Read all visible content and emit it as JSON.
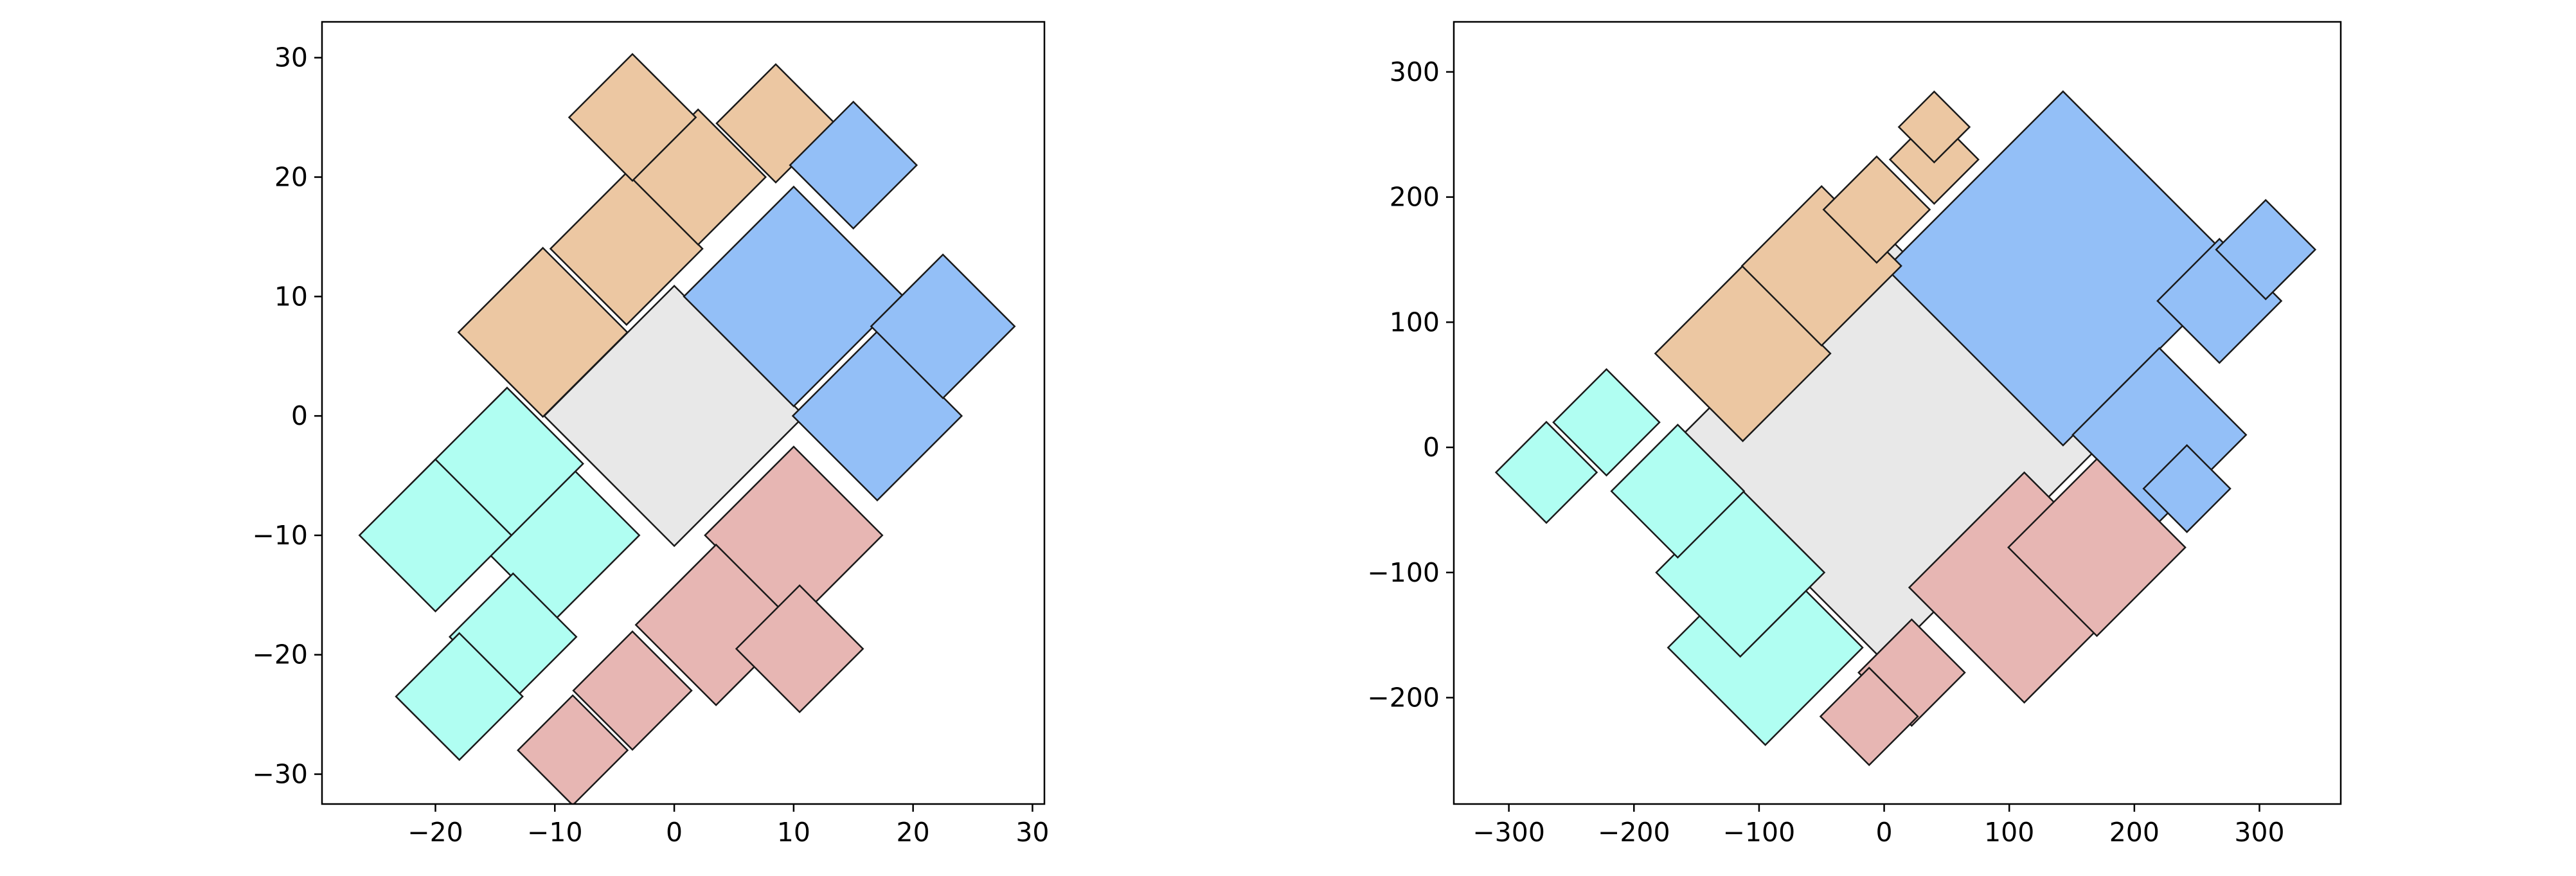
{
  "colors": {
    "center": "#e8e8e8",
    "top_left": "#ecc7a2",
    "top_right": "#93bff7",
    "bottom_right": "#e7b6b3",
    "bottom_left": "#b0fef2"
  },
  "chart_data": [
    {
      "type": "treemap-squares",
      "title": "",
      "xlabel": "",
      "ylabel": "",
      "xlim": [
        -29.5,
        31.0
      ],
      "ylim": [
        -32.5,
        33.0
      ],
      "xticks": [
        -20,
        -10,
        0,
        10,
        20,
        30
      ],
      "yticks": [
        -30,
        -20,
        -10,
        0,
        10,
        20,
        30
      ],
      "xtick_labels": [
        "−20",
        "−10",
        "0",
        "10",
        "20",
        "30"
      ],
      "ytick_labels": [
        "−30",
        "−20",
        "−10",
        "0",
        "10",
        "20",
        "30"
      ],
      "grid": false,
      "squares": [
        {
          "group": "center",
          "cx": 0.0,
          "cy": 0.0,
          "size": 15.4
        },
        {
          "group": "top_left",
          "cx": -11.0,
          "cy": 7.0,
          "size": 10.0
        },
        {
          "group": "top_left",
          "cx": -4.0,
          "cy": 14.0,
          "size": 9.0
        },
        {
          "group": "top_left",
          "cx": 2.0,
          "cy": 20.0,
          "size": 8.0
        },
        {
          "group": "top_left",
          "cx": -3.5,
          "cy": 25.0,
          "size": 7.5
        },
        {
          "group": "top_left",
          "cx": 8.5,
          "cy": 24.5,
          "size": 7.0
        },
        {
          "group": "top_right",
          "cx": 10.0,
          "cy": 10.0,
          "size": 13.0
        },
        {
          "group": "top_right",
          "cx": 15.0,
          "cy": 21.0,
          "size": 7.5
        },
        {
          "group": "top_right",
          "cx": 17.0,
          "cy": 0.0,
          "size": 10.0
        },
        {
          "group": "top_right",
          "cx": 22.5,
          "cy": 7.5,
          "size": 8.5
        },
        {
          "group": "bottom_right",
          "cx": 10.0,
          "cy": -10.0,
          "size": 10.5
        },
        {
          "group": "bottom_right",
          "cx": 3.5,
          "cy": -17.5,
          "size": 9.5
        },
        {
          "group": "bottom_right",
          "cx": 10.5,
          "cy": -19.5,
          "size": 7.5
        },
        {
          "group": "bottom_right",
          "cx": -3.5,
          "cy": -23.0,
          "size": 7.0
        },
        {
          "group": "bottom_right",
          "cx": -8.5,
          "cy": -28.0,
          "size": 6.5
        },
        {
          "group": "bottom_left",
          "cx": -10.0,
          "cy": -10.0,
          "size": 10.0
        },
        {
          "group": "bottom_left",
          "cx": -14.0,
          "cy": -4.0,
          "size": 9.0
        },
        {
          "group": "bottom_left",
          "cx": -20.0,
          "cy": -10.0,
          "size": 9.0
        },
        {
          "group": "bottom_left",
          "cx": -13.5,
          "cy": -18.5,
          "size": 7.5
        },
        {
          "group": "bottom_left",
          "cx": -18.0,
          "cy": -23.5,
          "size": 7.5
        }
      ]
    },
    {
      "type": "treemap-squares",
      "title": "",
      "xlabel": "",
      "ylabel": "",
      "xlim": [
        -344,
        365
      ],
      "ylim": [
        -285,
        340
      ],
      "xticks": [
        -300,
        -200,
        -100,
        0,
        100,
        200,
        300
      ],
      "yticks": [
        -200,
        -100,
        0,
        100,
        200,
        300
      ],
      "xtick_labels": [
        "−300",
        "−200",
        "−100",
        "0",
        "100",
        "200",
        "300"
      ],
      "ytick_labels": [
        "−200",
        "−100",
        "0",
        "100",
        "200",
        "300"
      ],
      "grid": false,
      "squares": [
        {
          "group": "center",
          "cx": 0.0,
          "cy": 0.0,
          "size": 242
        },
        {
          "group": "top_right",
          "cx": 143.0,
          "cy": 143.0,
          "size": 200
        },
        {
          "group": "top_right",
          "cx": 220.0,
          "cy": 10.0,
          "size": 98
        },
        {
          "group": "top_right",
          "cx": 268.0,
          "cy": 117.0,
          "size": 70
        },
        {
          "group": "top_right",
          "cx": 305.0,
          "cy": 158.0,
          "size": 56
        },
        {
          "group": "top_right",
          "cx": 242.0,
          "cy": -33.0,
          "size": 49
        },
        {
          "group": "top_left",
          "cx": -113.0,
          "cy": 75.0,
          "size": 99
        },
        {
          "group": "top_left",
          "cx": -50.0,
          "cy": 145.0,
          "size": 90
        },
        {
          "group": "top_left",
          "cx": -6.0,
          "cy": 190.0,
          "size": 60
        },
        {
          "group": "top_left",
          "cx": 40.0,
          "cy": 230.0,
          "size": 50
        },
        {
          "group": "top_left",
          "cx": 40.0,
          "cy": 256.0,
          "size": 40
        },
        {
          "group": "bottom_right",
          "cx": 112.0,
          "cy": -112.0,
          "size": 130
        },
        {
          "group": "bottom_right",
          "cx": 170.0,
          "cy": -80.0,
          "size": 100
        },
        {
          "group": "bottom_right",
          "cx": 22.0,
          "cy": -180.0,
          "size": 60
        },
        {
          "group": "bottom_right",
          "cx": -12.0,
          "cy": -215.0,
          "size": 55
        },
        {
          "group": "bottom_left",
          "cx": -95.0,
          "cy": -160.0,
          "size": 110
        },
        {
          "group": "bottom_left",
          "cx": -115.0,
          "cy": -100.0,
          "size": 95
        },
        {
          "group": "bottom_left",
          "cx": -165.0,
          "cy": -35.0,
          "size": 75
        },
        {
          "group": "bottom_left",
          "cx": -222.0,
          "cy": 20.0,
          "size": 60
        },
        {
          "group": "bottom_left",
          "cx": -270.0,
          "cy": -20.0,
          "size": 57
        }
      ]
    }
  ]
}
